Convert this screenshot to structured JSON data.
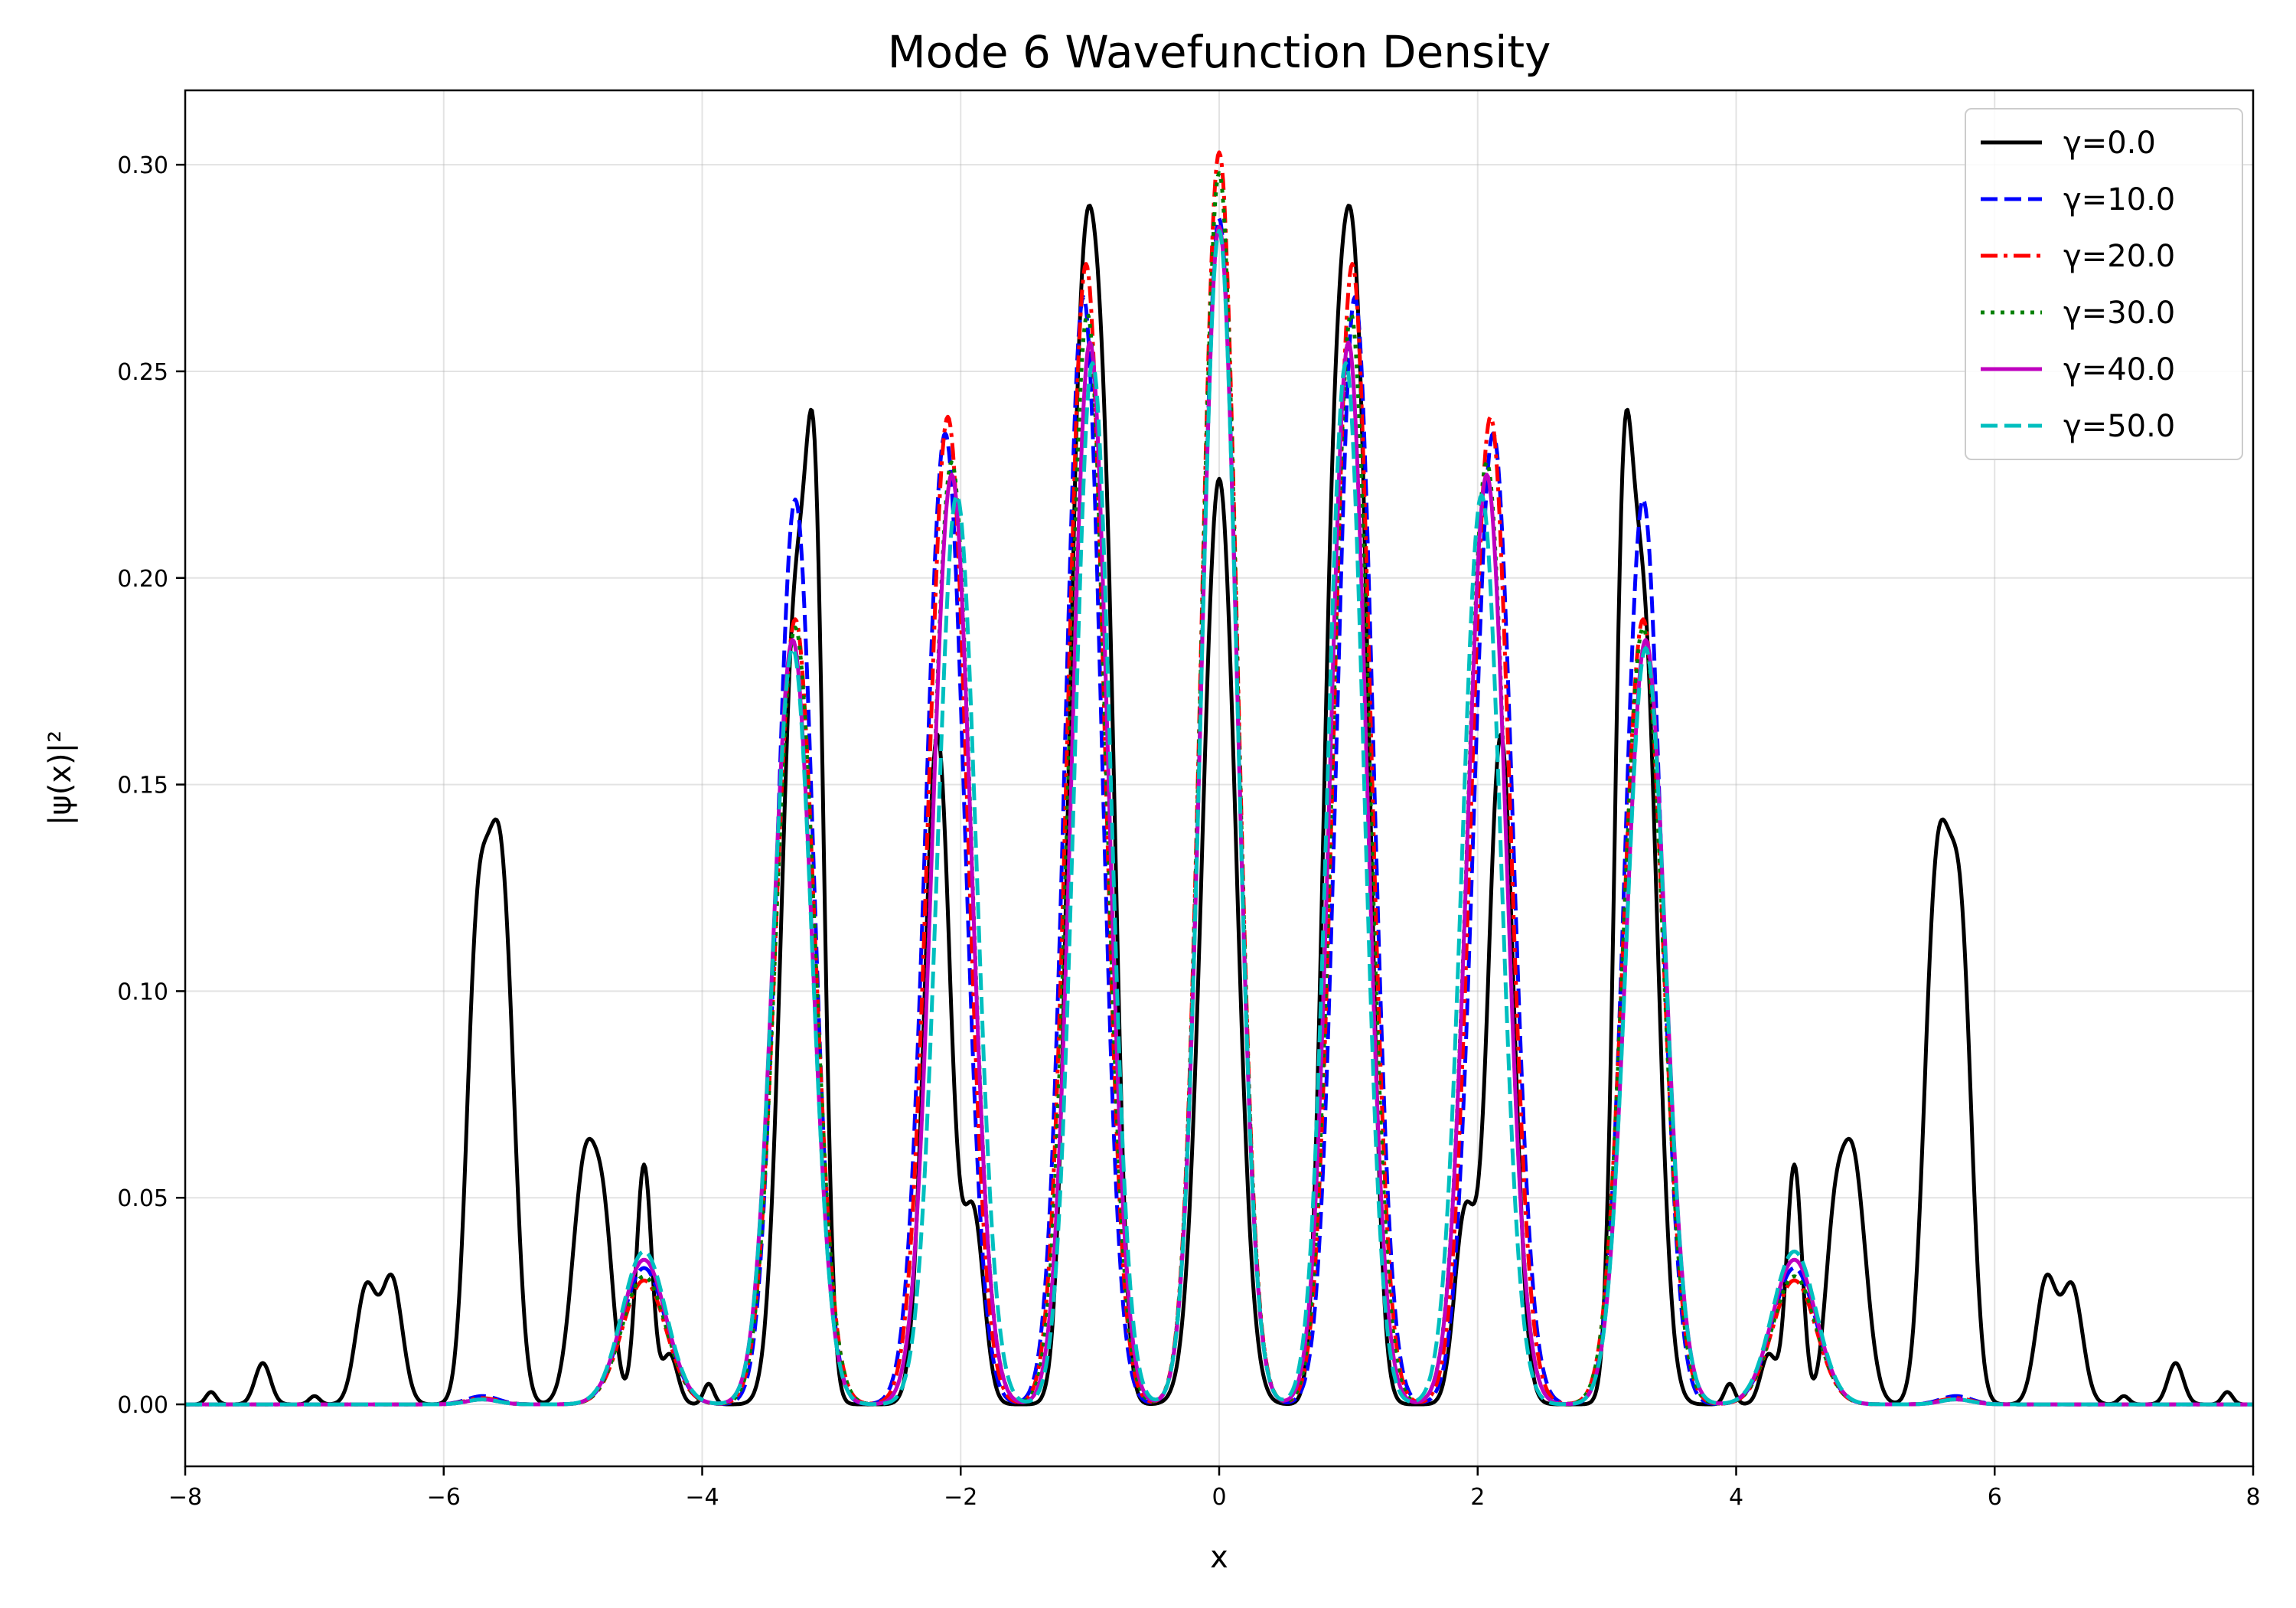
{
  "chart_data": {
    "type": "line",
    "title": "Mode 6 Wavefunction Density",
    "xlabel": "x",
    "ylabel": "|ψ(x)|²",
    "xlim": [
      -8,
      8
    ],
    "ylim": [
      -0.015,
      0.318
    ],
    "xticks": [
      -8,
      -6,
      -4,
      -2,
      0,
      2,
      4,
      6,
      8
    ],
    "xtick_labels": [
      "−8",
      "−6",
      "−4",
      "−2",
      "0",
      "2",
      "4",
      "6",
      "8"
    ],
    "yticks": [
      0.0,
      0.05,
      0.1,
      0.15,
      0.2,
      0.25,
      0.3
    ],
    "ytick_labels": [
      "0.00",
      "0.05",
      "0.10",
      "0.15",
      "0.20",
      "0.25",
      "0.30"
    ],
    "grid": true,
    "legend": "top-right",
    "series": [
      {
        "name": "γ=0.0",
        "color": "#000000",
        "dash": "solid",
        "peaks": [
          [
            -7.8,
            0.003,
            0.04
          ],
          [
            -7.4,
            0.01,
            0.06
          ],
          [
            -7.0,
            0.002,
            0.04
          ],
          [
            -6.6,
            0.028,
            0.08
          ],
          [
            -6.4,
            0.03,
            0.08
          ],
          [
            -5.75,
            0.095,
            0.08
          ],
          [
            -5.6,
            0.1,
            0.09
          ],
          [
            -5.5,
            0.055,
            0.08
          ],
          [
            -4.9,
            0.06,
            0.1
          ],
          [
            -4.75,
            0.03,
            0.07
          ],
          [
            -4.45,
            0.058,
            0.06
          ],
          [
            -4.25,
            0.012,
            0.06
          ],
          [
            -3.95,
            0.005,
            0.04
          ],
          [
            -3.28,
            0.19,
            0.11
          ],
          [
            -3.12,
            0.16,
            0.07
          ],
          [
            -2.18,
            0.162,
            0.1
          ],
          [
            -1.9,
            0.045,
            0.08
          ],
          [
            -1.1,
            0.175,
            0.09
          ],
          [
            -0.97,
            0.185,
            0.09
          ],
          [
            -0.85,
            0.12,
            0.08
          ],
          [
            0.0,
            0.224,
            0.13
          ],
          [
            0.85,
            0.12,
            0.08
          ],
          [
            0.97,
            0.185,
            0.09
          ],
          [
            1.1,
            0.175,
            0.09
          ],
          [
            1.9,
            0.045,
            0.08
          ],
          [
            2.18,
            0.162,
            0.1
          ],
          [
            3.12,
            0.16,
            0.07
          ],
          [
            3.28,
            0.19,
            0.11
          ],
          [
            3.95,
            0.005,
            0.04
          ],
          [
            4.25,
            0.012,
            0.06
          ],
          [
            4.45,
            0.058,
            0.06
          ],
          [
            4.75,
            0.03,
            0.07
          ],
          [
            4.9,
            0.06,
            0.1
          ],
          [
            5.5,
            0.055,
            0.08
          ],
          [
            5.6,
            0.1,
            0.09
          ],
          [
            5.75,
            0.095,
            0.08
          ],
          [
            6.4,
            0.03,
            0.08
          ],
          [
            6.6,
            0.028,
            0.08
          ],
          [
            7.0,
            0.002,
            0.04
          ],
          [
            7.4,
            0.01,
            0.06
          ],
          [
            7.8,
            0.003,
            0.04
          ]
        ]
      },
      {
        "name": "γ=10.0",
        "color": "#0000ff",
        "dash": "dashed",
        "peaks": [
          [
            -5.7,
            0.002,
            0.12
          ],
          [
            -4.45,
            0.033,
            0.17
          ],
          [
            -3.28,
            0.219,
            0.14
          ],
          [
            -2.12,
            0.235,
            0.15
          ],
          [
            -1.05,
            0.268,
            0.14
          ],
          [
            0.0,
            0.287,
            0.14
          ],
          [
            1.05,
            0.268,
            0.14
          ],
          [
            2.12,
            0.235,
            0.15
          ],
          [
            3.28,
            0.219,
            0.14
          ],
          [
            4.45,
            0.033,
            0.17
          ],
          [
            5.7,
            0.002,
            0.12
          ]
        ]
      },
      {
        "name": "γ=20.0",
        "color": "#ff0000",
        "dash": "dashdot",
        "peaks": [
          [
            -5.7,
            0.0015,
            0.12
          ],
          [
            -4.45,
            0.03,
            0.17
          ],
          [
            -3.28,
            0.19,
            0.15
          ],
          [
            -2.1,
            0.239,
            0.15
          ],
          [
            -1.03,
            0.276,
            0.14
          ],
          [
            0.0,
            0.303,
            0.14
          ],
          [
            1.03,
            0.276,
            0.14
          ],
          [
            2.1,
            0.239,
            0.15
          ],
          [
            3.28,
            0.19,
            0.15
          ],
          [
            4.45,
            0.03,
            0.17
          ],
          [
            5.7,
            0.0015,
            0.12
          ]
        ]
      },
      {
        "name": "γ=30.0",
        "color": "#008000",
        "dash": "dotted",
        "peaks": [
          [
            -5.7,
            0.0012,
            0.12
          ],
          [
            -4.45,
            0.031,
            0.17
          ],
          [
            -3.28,
            0.188,
            0.15
          ],
          [
            -2.07,
            0.228,
            0.15
          ],
          [
            -1.02,
            0.264,
            0.14
          ],
          [
            0.0,
            0.298,
            0.14
          ],
          [
            1.02,
            0.264,
            0.14
          ],
          [
            2.07,
            0.228,
            0.15
          ],
          [
            3.28,
            0.188,
            0.15
          ],
          [
            4.45,
            0.031,
            0.17
          ],
          [
            5.7,
            0.0012,
            0.12
          ]
        ]
      },
      {
        "name": "γ=40.0",
        "color": "#bf00bf",
        "dash": "solid",
        "peaks": [
          [
            -5.7,
            0.0012,
            0.12
          ],
          [
            -4.45,
            0.035,
            0.17
          ],
          [
            -3.3,
            0.185,
            0.15
          ],
          [
            -2.07,
            0.225,
            0.15
          ],
          [
            -1.0,
            0.257,
            0.14
          ],
          [
            0.0,
            0.285,
            0.14
          ],
          [
            1.0,
            0.257,
            0.14
          ],
          [
            2.07,
            0.225,
            0.15
          ],
          [
            3.3,
            0.185,
            0.15
          ],
          [
            4.45,
            0.035,
            0.17
          ],
          [
            5.7,
            0.0012,
            0.12
          ]
        ]
      },
      {
        "name": "γ=50.0",
        "color": "#00bfbf",
        "dash": "dashed",
        "peaks": [
          [
            -5.7,
            0.0012,
            0.12
          ],
          [
            -4.45,
            0.037,
            0.17
          ],
          [
            -3.3,
            0.183,
            0.15
          ],
          [
            -2.03,
            0.22,
            0.15
          ],
          [
            -0.98,
            0.252,
            0.14
          ],
          [
            0.0,
            0.284,
            0.14
          ],
          [
            0.98,
            0.252,
            0.14
          ],
          [
            2.03,
            0.22,
            0.15
          ],
          [
            3.3,
            0.183,
            0.15
          ],
          [
            4.45,
            0.037,
            0.17
          ],
          [
            5.7,
            0.0012,
            0.12
          ]
        ]
      }
    ]
  }
}
